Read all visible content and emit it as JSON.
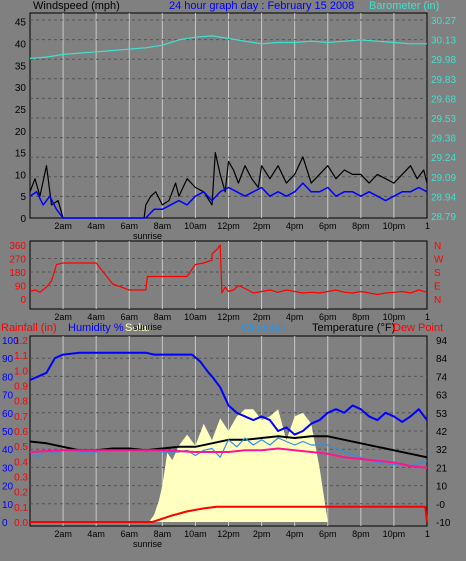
{
  "chart_data": [
    {
      "type": "line",
      "title": "24 hour graph day : February 15 2008",
      "y_left_label": "Windspeed (mph)",
      "y_right_label": "Barometer (in)",
      "y_left_ticks": [
        "0",
        "5",
        "10",
        "15",
        "20",
        "25",
        "30",
        "35",
        "40",
        "45"
      ],
      "y_right_ticks": [
        "28.79",
        "28.94",
        "29.09",
        "29.24",
        "29.38",
        "29.53",
        "29.68",
        "29.83",
        "29.98",
        "30.13",
        "30.27"
      ],
      "y_left_range": [
        0,
        47
      ],
      "y_right_range": [
        28.79,
        30.27
      ],
      "x_ticks": [
        "2am",
        "4am",
        "6am",
        "8am",
        "10am",
        "12pm",
        "2pm",
        "4pm",
        "6pm",
        "8pm",
        "10pm"
      ],
      "grid": true,
      "series": [
        {
          "key": "barometer",
          "color": "#40e0d0",
          "axis": "right",
          "x": [
            0,
            1,
            2,
            3,
            4,
            5,
            6,
            7,
            8,
            9,
            10,
            11,
            12,
            13,
            14,
            15,
            16,
            17,
            18,
            19,
            20,
            21,
            22,
            23,
            24
          ],
          "y": [
            29.98,
            29.99,
            30.01,
            30.02,
            30.03,
            30.04,
            30.05,
            30.06,
            30.08,
            30.12,
            30.14,
            30.15,
            30.13,
            30.11,
            30.09,
            30.1,
            30.1,
            30.11,
            30.1,
            30.11,
            30.12,
            30.11,
            30.1,
            30.09,
            30.09
          ]
        },
        {
          "key": "wind_gust",
          "color": "#000000",
          "axis": "left",
          "x": [
            0,
            0.3,
            0.6,
            1,
            1.3,
            1.7,
            2,
            3,
            4,
            5,
            6,
            6.9,
            7,
            7.3,
            7.6,
            8,
            8.4,
            8.8,
            9,
            9.5,
            10,
            10.5,
            11,
            11.2,
            11.5,
            11.8,
            12,
            12.3,
            12.6,
            13,
            13.4,
            13.8,
            14,
            14.5,
            15,
            15.5,
            16,
            16.5,
            17,
            17.5,
            18,
            18.5,
            19,
            19.5,
            20,
            20.5,
            21,
            21.5,
            22,
            22.5,
            23,
            23.4,
            23.8,
            24
          ],
          "y": [
            6,
            9,
            5,
            12,
            3,
            4,
            0,
            0,
            0,
            0,
            0,
            0,
            3,
            5,
            6,
            3,
            4,
            8,
            5,
            9,
            7,
            6,
            3,
            15,
            10,
            6,
            13,
            11,
            8,
            12,
            9,
            7,
            12,
            9,
            12,
            8,
            10,
            14,
            8,
            10,
            12,
            9,
            11,
            10,
            10,
            8,
            10,
            9,
            8,
            10,
            12,
            9,
            11,
            8
          ]
        },
        {
          "key": "wind_avg",
          "color": "#0000ff",
          "axis": "left",
          "x": [
            0,
            0.4,
            0.8,
            1.2,
            1.6,
            2,
            3,
            4,
            5,
            6,
            7,
            7.5,
            8,
            8.5,
            9,
            9.5,
            10,
            10.5,
            11,
            11.5,
            12,
            12.5,
            13,
            13.5,
            14,
            14.5,
            15,
            15.5,
            16,
            16.5,
            17,
            17.5,
            18,
            18.5,
            19,
            19.5,
            20,
            20.5,
            21,
            21.5,
            22,
            22.5,
            23,
            23.5,
            24
          ],
          "y": [
            5,
            6,
            3,
            5,
            2,
            0,
            0,
            0,
            0,
            0,
            0,
            2,
            2,
            3,
            4,
            3,
            5,
            6,
            4,
            6,
            7,
            6,
            5,
            6,
            7,
            5,
            6,
            5,
            6,
            8,
            6,
            6,
            7,
            5,
            6,
            6,
            5,
            6,
            5,
            4,
            5,
            6,
            6,
            7,
            6
          ]
        }
      ]
    },
    {
      "type": "line",
      "y_left_ticks": [
        "0",
        "90",
        "180",
        "270",
        "360"
      ],
      "y_left_range": [
        0,
        360
      ],
      "y_right_ticks": [
        "N",
        "W",
        "S",
        "E",
        "N"
      ],
      "x_ticks": [
        "2am",
        "4am",
        "6am",
        "8am",
        "10am",
        "12pm",
        "2pm",
        "4pm",
        "6pm",
        "8pm",
        "10pm"
      ],
      "grid": true,
      "series": [
        {
          "key": "wind_direction",
          "color": "#ff0000",
          "axis": "left",
          "x": [
            0,
            0.3,
            0.6,
            1,
            1.3,
            1.6,
            2,
            3,
            4,
            5,
            6,
            6.9,
            7,
            7.1,
            8,
            9,
            9.5,
            10,
            10.5,
            11,
            11,
            11.3,
            11.5,
            11.6,
            11.8,
            12,
            12.3,
            12.6,
            13,
            13.5,
            14,
            14.5,
            15,
            15.5,
            16,
            16.5,
            17,
            17.5,
            18,
            18.5,
            19,
            19.5,
            20,
            20.5,
            21,
            21.5,
            22,
            22.5,
            23,
            23.5,
            24
          ],
          "y": [
            50,
            60,
            45,
            80,
            120,
            230,
            240,
            240,
            240,
            100,
            60,
            60,
            60,
            150,
            150,
            150,
            150,
            230,
            240,
            260,
            300,
            330,
            360,
            40,
            80,
            50,
            60,
            90,
            70,
            40,
            50,
            60,
            45,
            60,
            50,
            40,
            45,
            40,
            50,
            60,
            45,
            40,
            50,
            40,
            30,
            40,
            45,
            50,
            40,
            60,
            45
          ]
        }
      ]
    },
    {
      "type": "line",
      "y_left_labels": [
        "Rainfall (in)",
        "Humidity %",
        "Solar"
      ],
      "y_left_ticks_rain": [
        "0.0",
        "0.1",
        "0.2",
        "0.3",
        "0.4",
        "0.5",
        "0.6",
        "0.7",
        "0.8",
        "0.9",
        "1.0",
        "1.1",
        "1.2"
      ],
      "y_left_ticks_humidity": [
        "0",
        "10",
        "20",
        "30",
        "40",
        "50",
        "60",
        "70",
        "80",
        "90",
        "100"
      ],
      "legend": [
        "Windchill",
        "Temperature (°F)",
        "Dew Point"
      ],
      "y_right_label": "Temperature (°F)",
      "y_right_ticks": [
        "-10",
        "-0",
        "10",
        "21",
        "32",
        "42",
        "53",
        "63",
        "74",
        "84",
        "94"
      ],
      "y_right_range": [
        -10,
        94
      ],
      "x_ticks": [
        "2am",
        "4am",
        "6am",
        "8am",
        "10am",
        "12pm",
        "2pm",
        "4pm",
        "6pm",
        "8pm",
        "10pm"
      ],
      "grid": true,
      "series": [
        {
          "key": "humidity",
          "color": "#0000ff",
          "axis": "humidity",
          "x": [
            0,
            0.5,
            1,
            1.5,
            2,
            3,
            4,
            5,
            6,
            7,
            7.5,
            8,
            8.5,
            9,
            9.8,
            10.3,
            10.8,
            11,
            11.5,
            11.8,
            12,
            12.5,
            13,
            13.5,
            14,
            14.5,
            15,
            15.5,
            16,
            16.5,
            17,
            17.5,
            18,
            18.5,
            19,
            19.5,
            20,
            20.5,
            21,
            21.5,
            22,
            22.5,
            23,
            23.5,
            24
          ],
          "y": [
            78,
            80,
            82,
            90,
            92,
            93,
            93,
            93,
            93,
            93,
            92,
            92,
            92,
            92,
            92,
            88,
            82,
            80,
            74,
            68,
            64,
            60,
            58,
            56,
            58,
            56,
            50,
            52,
            48,
            50,
            54,
            56,
            60,
            62,
            60,
            64,
            62,
            58,
            56,
            60,
            58,
            55,
            58,
            62,
            56
          ]
        },
        {
          "key": "solar",
          "color": "#ffffc0",
          "axis": "humidity",
          "fill": true,
          "x": [
            0,
            6.5,
            7.2,
            7.5,
            7.8,
            8,
            8.3,
            8.6,
            9,
            9.5,
            10,
            10.5,
            11,
            11.5,
            12,
            12.5,
            13,
            13.5,
            14,
            14.5,
            15,
            15.5,
            16,
            16.5,
            17,
            17.5,
            18,
            24
          ],
          "y": [
            0,
            0,
            0,
            4,
            12,
            20,
            38,
            34,
            42,
            48,
            42,
            54,
            45,
            57,
            50,
            58,
            62,
            62,
            56,
            58,
            62,
            45,
            58,
            60,
            54,
            30,
            0,
            0
          ]
        },
        {
          "key": "temperature",
          "color": "#000000",
          "axis": "right",
          "x": [
            0,
            1,
            2,
            3,
            4,
            5,
            6,
            7,
            8,
            9,
            10,
            11,
            12,
            13,
            14,
            15,
            16,
            17,
            18,
            19,
            20,
            21,
            22,
            23,
            24
          ],
          "y": [
            36,
            35,
            33,
            31,
            31,
            32,
            32,
            31,
            32,
            33,
            33,
            35,
            37,
            37,
            38,
            39,
            38,
            39,
            39,
            37,
            35,
            33,
            31,
            29,
            27
          ]
        },
        {
          "key": "windchill",
          "color": "#3090e0",
          "axis": "right",
          "x": [
            0,
            0.5,
            1,
            1.5,
            2,
            3,
            4,
            5,
            6,
            7,
            8,
            9,
            9.5,
            10,
            10.5,
            11,
            11.5,
            12,
            12.5,
            13,
            13.5,
            14,
            14.5,
            15,
            15.5,
            16,
            16.5,
            17,
            18,
            19,
            20,
            21,
            22,
            23,
            24
          ],
          "y": [
            30,
            27,
            31,
            29,
            31,
            30,
            30,
            31,
            31,
            31,
            30,
            30,
            31,
            28,
            31,
            32,
            27,
            37,
            33,
            38,
            34,
            37,
            34,
            38,
            36,
            34,
            36,
            34,
            34,
            30,
            27,
            24,
            23,
            22,
            25
          ]
        },
        {
          "key": "dew_point",
          "color": "#ff1493",
          "axis": "right",
          "x": [
            0,
            2,
            4,
            6,
            8,
            10,
            11,
            12,
            13,
            14,
            15,
            16,
            17,
            18,
            19,
            20,
            21,
            22,
            23,
            24
          ],
          "y": [
            30,
            31,
            31,
            31,
            31,
            30,
            30,
            30,
            31,
            31,
            32,
            31,
            30,
            29,
            27,
            26,
            25,
            24,
            22,
            21
          ]
        },
        {
          "key": "rainfall",
          "color": "#ff0000",
          "axis": "rain",
          "x": [
            0,
            6,
            7.4,
            8.5,
            9.5,
            10.5,
            11.3,
            12,
            22,
            23.9,
            24
          ],
          "y": [
            0,
            0,
            0,
            0.04,
            0.07,
            0.09,
            0.1,
            0.1,
            0.1,
            0.1,
            0
          ]
        }
      ]
    }
  ],
  "sunrise_label": "sunrise",
  "colors": {
    "background": "#808080",
    "plot_bg": "#808080",
    "grid": "#c8c8c8",
    "title": "#0000ff",
    "rain": "#ff0000",
    "humidity": "#0000ff",
    "solar": "#ffffc0",
    "windchill": "#3090e0",
    "dew_point": "#ff1493"
  }
}
